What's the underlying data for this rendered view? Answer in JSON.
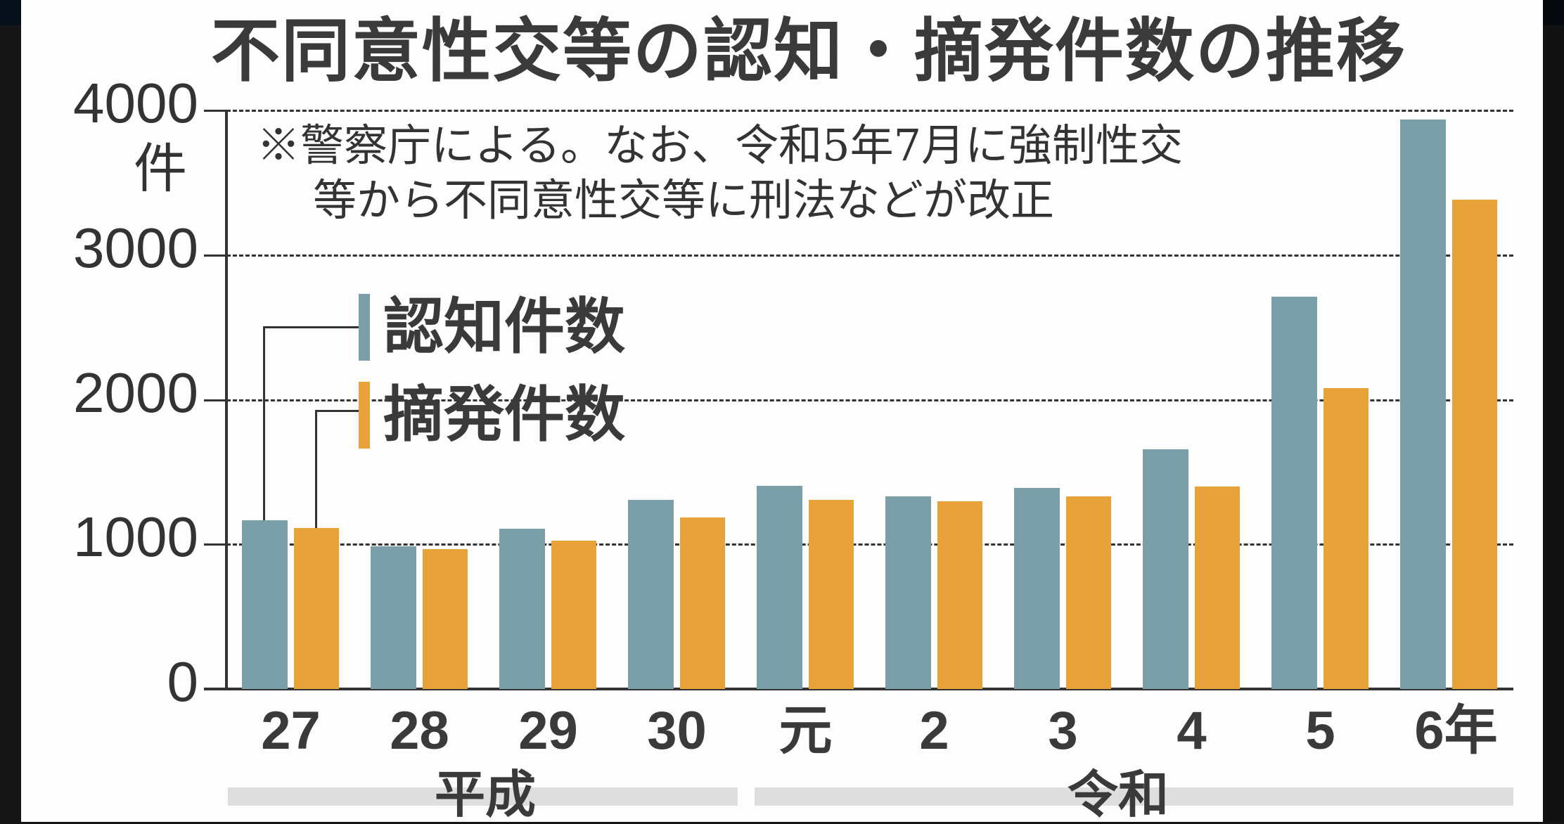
{
  "title": "不同意性交等の認知・摘発件数の推移",
  "note": {
    "line1": "※警察庁による。なお、令和5年7月に強制性交",
    "line2": "等から不同意性交等に刑法などが改正"
  },
  "y_axis": {
    "unit": "件",
    "ticks": [
      "4000",
      "3000",
      "2000",
      "1000",
      "0"
    ]
  },
  "legend": {
    "items": [
      {
        "label": "認知件数",
        "color": "#7a9fa8"
      },
      {
        "label": "摘発件数",
        "color": "#e8a23a"
      }
    ]
  },
  "x_axis": {
    "labels": [
      "27",
      "28",
      "29",
      "30",
      "元",
      "2",
      "3",
      "4",
      "5",
      "6年"
    ],
    "eras": [
      {
        "label": "平成"
      },
      {
        "label": "令和"
      }
    ]
  },
  "chart_data": {
    "type": "bar",
    "title": "不同意性交等の認知・摘発件数の推移",
    "subtitle": "※警察庁による。なお、令和5年7月に強制性交等から不同意性交等に刑法などが改正",
    "xlabel": "",
    "ylabel": "件",
    "categories": [
      "平成27",
      "平成28",
      "平成29",
      "平成30",
      "令和元",
      "令和2",
      "令和3",
      "令和4",
      "令和5",
      "令和6年"
    ],
    "series": [
      {
        "name": "認知件数",
        "color": "#7a9fa8",
        "values": [
          1167,
          989,
          1109,
          1307,
          1405,
          1332,
          1388,
          1655,
          2711,
          3936
        ]
      },
      {
        "name": "摘発件数",
        "color": "#e8a23a",
        "values": [
          1114,
          968,
          1027,
          1187,
          1305,
          1297,
          1330,
          1401,
          2078,
          3383
        ]
      }
    ],
    "ylim": [
      0,
      4000
    ],
    "yticks": [
      0,
      1000,
      2000,
      3000,
      4000
    ],
    "grid": "horizontal dashed",
    "legend_position": "upper-left inside"
  }
}
